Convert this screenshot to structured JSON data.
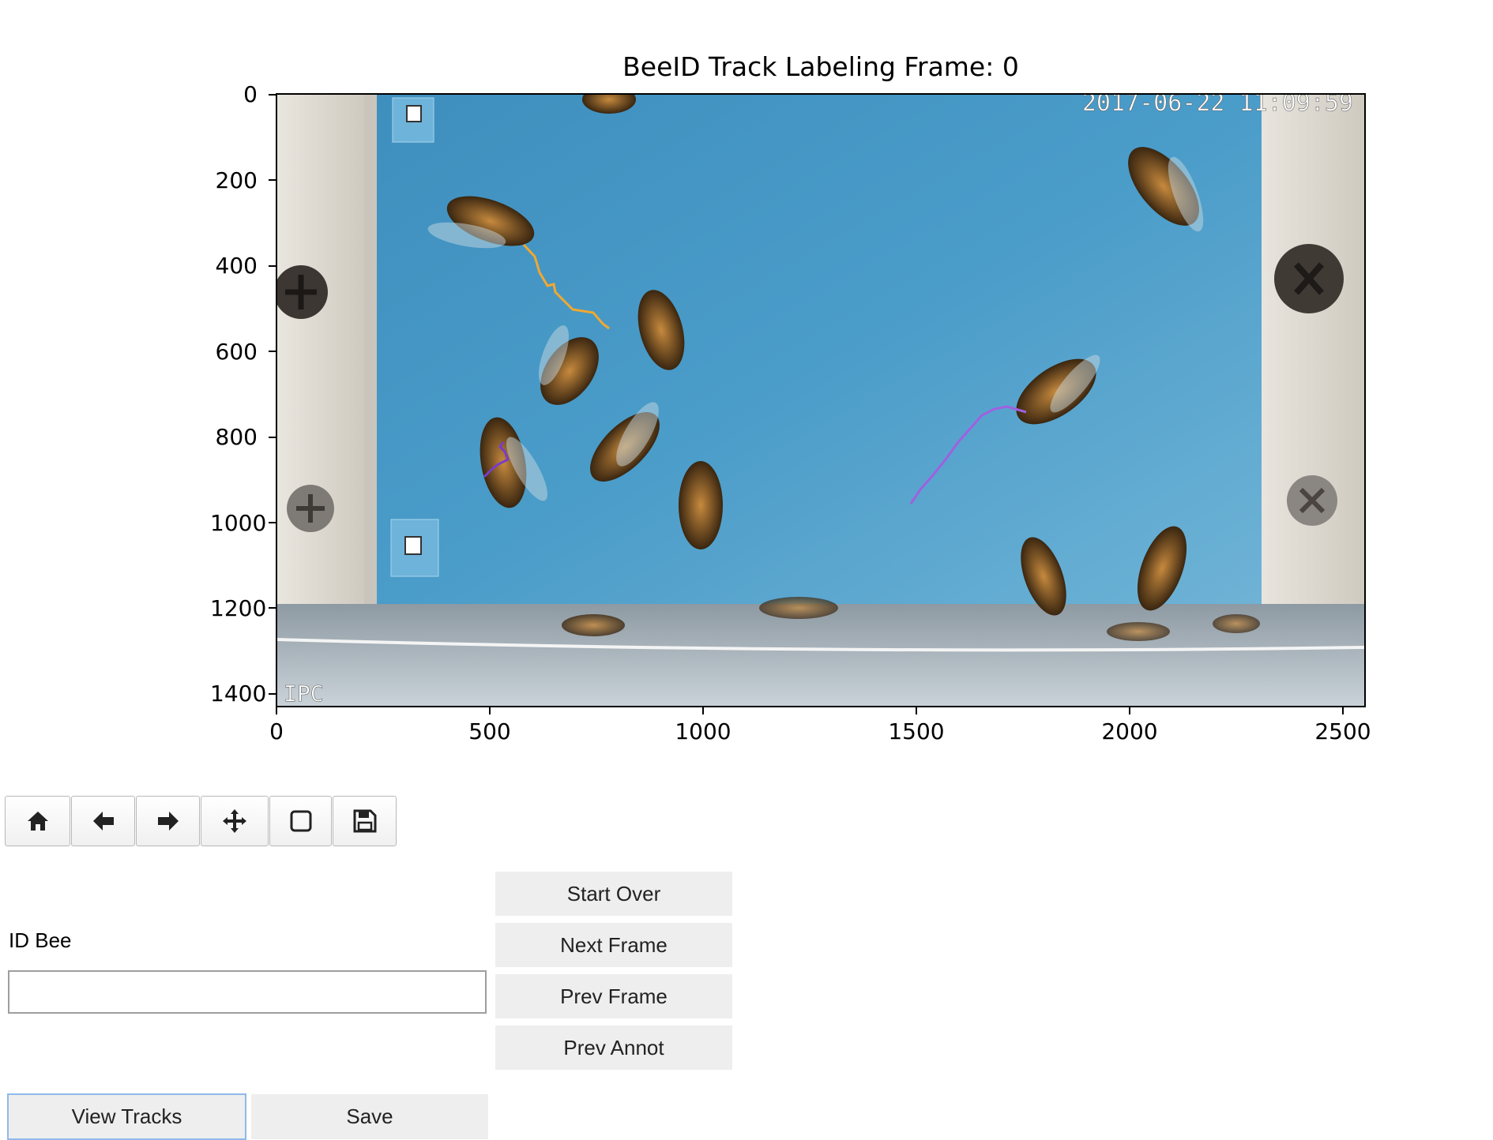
{
  "figure": {
    "title": "BeeID Track Labeling Frame: 0",
    "overlay_timestamp": "2017-06-22 11:09:59",
    "overlay_watermark": "IPC",
    "y_ticks": [
      "0",
      "200",
      "400",
      "600",
      "800",
      "1000",
      "1200",
      "1400"
    ],
    "x_ticks": [
      "0",
      "500",
      "1000",
      "1500",
      "2000",
      "2500"
    ],
    "track_colors": {
      "orange": "#f0a830",
      "purple": "#a060e0",
      "violet": "#7a3cc8"
    }
  },
  "toolbar": {
    "icons": [
      "home-icon",
      "back-arrow-icon",
      "forward-arrow-icon",
      "pan-icon",
      "zoom-rect-icon",
      "save-icon"
    ]
  },
  "controls": {
    "id_label": "ID Bee",
    "id_input_value": "",
    "start_over": "Start Over",
    "next_frame": "Next Frame",
    "prev_frame": "Prev Frame",
    "prev_annot": "Prev Annot",
    "view_tracks": "View Tracks",
    "save": "Save"
  }
}
